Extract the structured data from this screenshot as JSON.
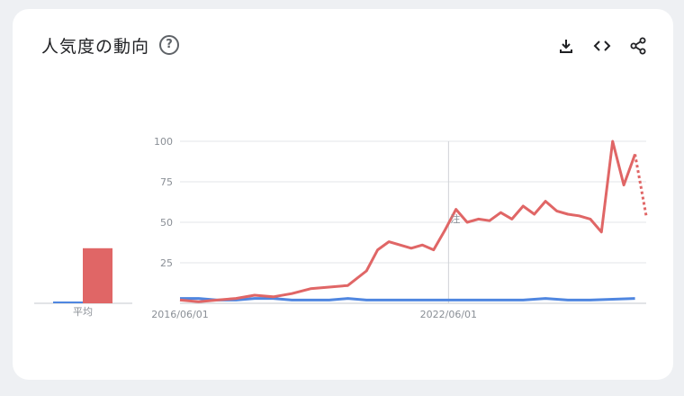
{
  "header": {
    "title": "人気度の動向",
    "help_icon": "help-circle-icon",
    "toolbar": [
      {
        "name": "download-icon"
      },
      {
        "name": "embed-code-icon"
      },
      {
        "name": "share-icon"
      }
    ]
  },
  "chart_data": {
    "type": "line",
    "ylim": [
      0,
      100
    ],
    "yticks": [
      "100",
      "75",
      "50",
      "25"
    ],
    "xtick_labels": [
      {
        "x": "2016/06/01",
        "label": "2016/06/01"
      },
      {
        "x": "2022/06/01",
        "label": "2022/06/01"
      }
    ],
    "annotation": {
      "x": "2022/06/01",
      "label": "注"
    },
    "x_start": "2016/06/01",
    "x_end": "2026/11/01",
    "grid": true,
    "colors": {
      "red": "#e06666",
      "blue": "#4f86e0"
    },
    "series": [
      {
        "color": "red",
        "x": [
          "2016/06",
          "2016/11",
          "2017/04",
          "2017/09",
          "2018/02",
          "2018/07",
          "2018/12",
          "2019/05",
          "2019/10",
          "2020/03",
          "2020/08",
          "2020/11",
          "2021/02",
          "2021/05",
          "2021/08",
          "2021/11",
          "2022/02",
          "2022/05",
          "2022/08",
          "2022/11",
          "2023/02",
          "2023/05",
          "2023/08",
          "2023/11",
          "2024/02",
          "2024/05",
          "2024/08",
          "2024/11",
          "2025/02",
          "2025/05",
          "2025/08",
          "2025/11",
          "2026/02",
          "2026/05",
          "2026/08"
        ],
        "values": [
          2,
          1,
          2,
          3,
          5,
          4,
          6,
          9,
          10,
          11,
          20,
          33,
          38,
          36,
          34,
          36,
          33,
          45,
          58,
          50,
          52,
          51,
          56,
          52,
          60,
          55,
          63,
          57,
          55,
          54,
          52,
          44,
          100,
          73,
          92
        ],
        "partial_values": [
          92,
          54
        ]
      },
      {
        "color": "blue",
        "x": [
          "2016/06",
          "2016/11",
          "2017/04",
          "2017/09",
          "2018/02",
          "2018/07",
          "2018/12",
          "2019/05",
          "2019/10",
          "2020/03",
          "2020/08",
          "2021/08",
          "2022/08",
          "2023/08",
          "2024/02",
          "2024/08",
          "2025/02",
          "2025/08",
          "2026/08"
        ],
        "values": [
          3,
          3,
          2,
          2,
          3,
          3,
          2,
          2,
          2,
          3,
          2,
          2,
          2,
          2,
          2,
          3,
          2,
          2,
          3
        ]
      }
    ],
    "average": {
      "label": "平均",
      "values": [
        {
          "color": "blue",
          "value": 1
        },
        {
          "color": "red",
          "value": 34
        }
      ]
    }
  }
}
